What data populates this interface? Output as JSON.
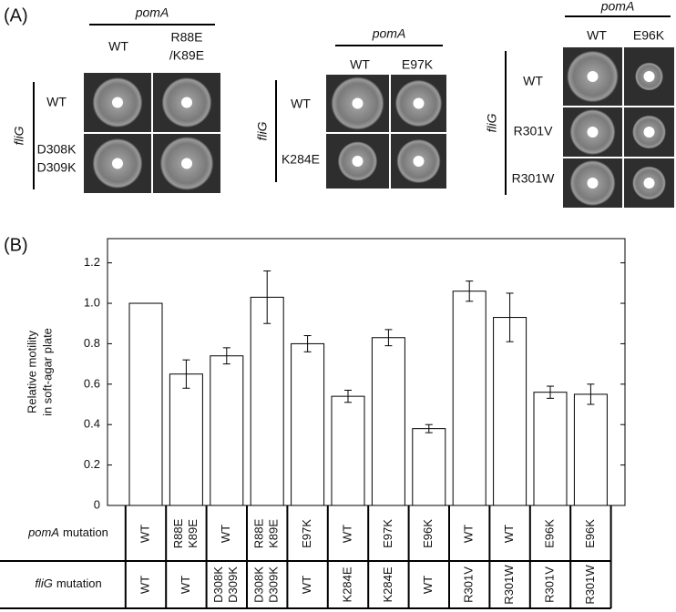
{
  "panel_a": {
    "label": "(A)",
    "groups": [
      {
        "column_gene": "pomA",
        "columns": [
          [
            "WT"
          ],
          [
            "R88E",
            "/K89E"
          ]
        ],
        "row_gene": "fliG",
        "rows": [
          [
            "WT"
          ],
          [
            "D308K",
            "D309K"
          ]
        ]
      },
      {
        "column_gene": "pomA",
        "columns": [
          [
            "WT"
          ],
          [
            "E97K"
          ]
        ],
        "row_gene": "fliG",
        "rows": [
          [
            "WT"
          ],
          [
            "K284E"
          ]
        ]
      },
      {
        "column_gene": "pomA",
        "columns": [
          [
            "WT"
          ],
          [
            "E96K"
          ]
        ],
        "row_gene": "fliG",
        "rows": [
          [
            "WT"
          ],
          [
            "R301V"
          ],
          [
            "R301W"
          ]
        ]
      }
    ]
  },
  "chart_data": {
    "type": "bar",
    "label": "(B)",
    "y_label": [
      "Relative motility",
      "in soft-agar plate"
    ],
    "values": [
      1.0,
      0.65,
      0.74,
      1.03,
      0.8,
      0.54,
      0.83,
      0.38,
      1.06,
      0.93,
      0.56,
      0.55
    ],
    "errors": [
      null,
      0.07,
      0.04,
      0.13,
      0.04,
      0.03,
      0.04,
      0.02,
      0.05,
      0.12,
      0.03,
      0.05
    ],
    "color": "#ffffff",
    "ylim": [
      0,
      1.32
    ],
    "yticks": [
      0,
      0.2,
      0.4,
      0.6,
      0.8,
      {
        "value": 1,
        "label": "1.0"
      },
      1.2
    ]
  },
  "table": {
    "rows": [
      {
        "gene": "pomA",
        "label": "mutation",
        "cells": [
          [
            "WT"
          ],
          [
            "R88E",
            "K89E"
          ],
          [
            "WT"
          ],
          [
            "R88E",
            "K89E"
          ],
          [
            "E97K"
          ],
          [
            "WT"
          ],
          [
            "E97K"
          ],
          [
            "E96K"
          ],
          [
            "WT"
          ],
          [
            "WT"
          ],
          [
            "E96K"
          ],
          [
            "E96K"
          ]
        ]
      },
      {
        "gene": "fliG",
        "label": "mutation",
        "cells": [
          [
            "WT"
          ],
          [
            "WT"
          ],
          [
            "D308K",
            "D309K"
          ],
          [
            "D308K",
            "D309K"
          ],
          [
            "WT"
          ],
          [
            "K284E"
          ],
          [
            "K284E"
          ],
          [
            "WT"
          ],
          [
            "R301V"
          ],
          [
            "R301W"
          ],
          [
            "R301V"
          ],
          [
            "R301W"
          ]
        ]
      }
    ]
  }
}
